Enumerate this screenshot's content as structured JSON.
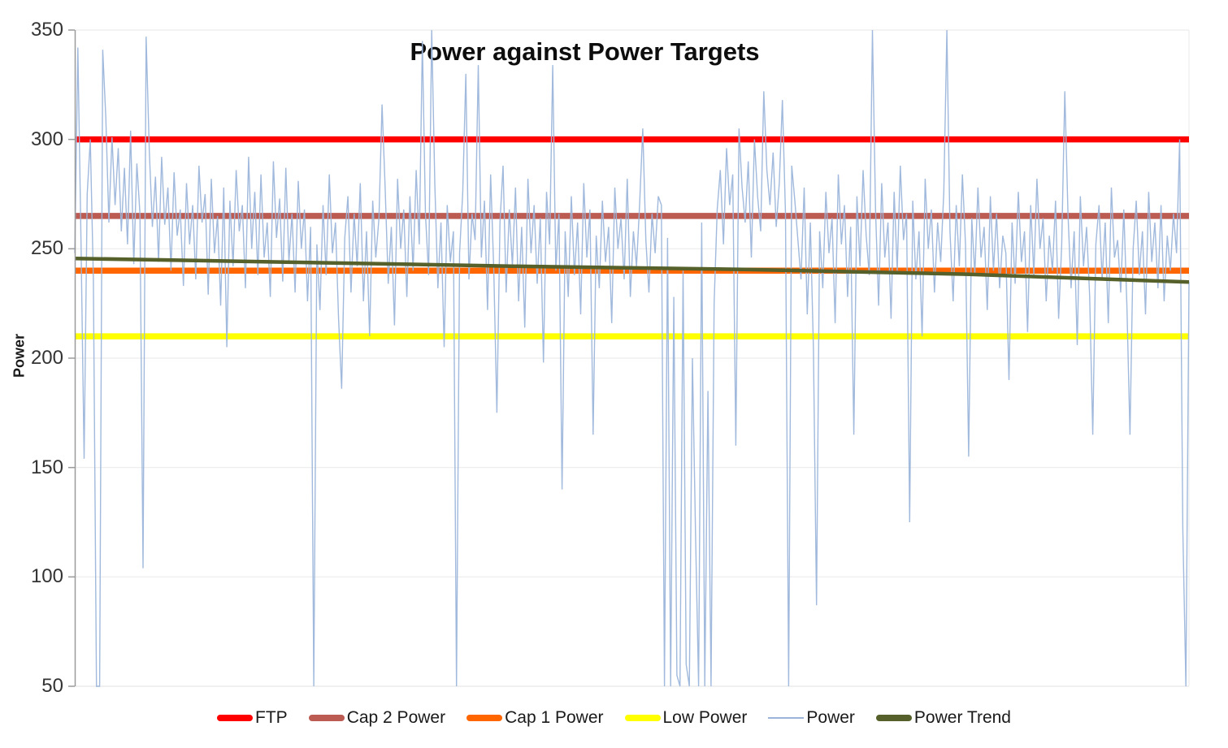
{
  "title": "Power against Power Targets",
  "y_axis": {
    "title": "Power",
    "ticks": [
      "350",
      "300",
      "250",
      "200",
      "150",
      "100",
      "50"
    ]
  },
  "legend": {
    "items": [
      {
        "label": "FTP",
        "color": "#FF0000",
        "style": "thick"
      },
      {
        "label": "Cap 2 Power",
        "color": "#BB5B52",
        "style": "thick"
      },
      {
        "label": "Cap 1 Power",
        "color": "#FF6600",
        "style": "thick"
      },
      {
        "label": "Low Power",
        "color": "#FFFF00",
        "style": "thick"
      },
      {
        "label": "Power",
        "color": "#9BB5DA",
        "style": "thin"
      },
      {
        "label": "Power Trend",
        "color": "#55602A",
        "style": "thick"
      }
    ]
  },
  "chart_data": {
    "type": "line",
    "title": "Power against Power Targets",
    "xlabel": "",
    "ylabel": "Power",
    "ylim": [
      50,
      350
    ],
    "ytick_step": 50,
    "x_axis_labels_visible": false,
    "grid": "horizontal-light",
    "legend_position": "bottom",
    "target_lines": [
      {
        "name": "FTP",
        "value": 300,
        "color": "#FF0000"
      },
      {
        "name": "Cap 2 Power",
        "value": 265,
        "color": "#BB5B52"
      },
      {
        "name": "Cap 1 Power",
        "value": 240,
        "color": "#FF6600"
      },
      {
        "name": "Low Power",
        "value": 210,
        "color": "#FFFF00"
      }
    ],
    "trend": {
      "name": "Power Trend",
      "color": "#55602A",
      "points_x_fraction_value": [
        [
          0,
          245.6
        ],
        [
          0.2,
          243.8
        ],
        [
          0.4,
          242.0
        ],
        [
          0.6,
          240.6
        ],
        [
          0.8,
          238.4
        ],
        [
          1.0,
          234.8
        ]
      ]
    },
    "power_series": {
      "name": "Power",
      "color": "#9BB5DA",
      "values": [
        248,
        342,
        255,
        154,
        275,
        300,
        236,
        50,
        50,
        341,
        310,
        262,
        301,
        270,
        296,
        258,
        287,
        252,
        304,
        243,
        289,
        266,
        104,
        347,
        295,
        260,
        283,
        244,
        292,
        261,
        278,
        240,
        285,
        256,
        268,
        233,
        280,
        252,
        270,
        236,
        288,
        262,
        275,
        229,
        282,
        248,
        265,
        224,
        278,
        205,
        272,
        242,
        286,
        258,
        270,
        232,
        292,
        250,
        276,
        238,
        284,
        246,
        262,
        228,
        290,
        255,
        273,
        235,
        287,
        244,
        266,
        230,
        281,
        250,
        268,
        226,
        260,
        50,
        252,
        222,
        270,
        238,
        284,
        248,
        262,
        218,
        186,
        255,
        274,
        230,
        266,
        242,
        280,
        226,
        258,
        210,
        272,
        246,
        264,
        316,
        278,
        234,
        260,
        215,
        282,
        250,
        268,
        228,
        274,
        240,
        286,
        252,
        345,
        266,
        238,
        350,
        280,
        232,
        262,
        205,
        270,
        244,
        258,
        50,
        248,
        276,
        330,
        236,
        266,
        254,
        334,
        246,
        272,
        222,
        284,
        240,
        175,
        262,
        288,
        230,
        268,
        242,
        278,
        226,
        260,
        214,
        282,
        248,
        270,
        234,
        264,
        198,
        276,
        252,
        334,
        240,
        266,
        140,
        258,
        228,
        274,
        238,
        262,
        220,
        280,
        246,
        268,
        165,
        256,
        232,
        272,
        244,
        260,
        216,
        278,
        250,
        264,
        236,
        282,
        228,
        258,
        242,
        270,
        305,
        254,
        230,
        266,
        248,
        274,
        270,
        50,
        255,
        50,
        228,
        55,
        50,
        240,
        60,
        50,
        200,
        120,
        50,
        262,
        50,
        185,
        50,
        225,
        268,
        286,
        252,
        296,
        270,
        284,
        160,
        305,
        278,
        262,
        290,
        246,
        300,
        274,
        258,
        322,
        286,
        270,
        294,
        260,
        280,
        318,
        266,
        50,
        288,
        272,
        254,
        236,
        278,
        220,
        262,
        204,
        87,
        258,
        232,
        276,
        248,
        264,
        216,
        284,
        252,
        270,
        228,
        260,
        165,
        274,
        242,
        286,
        256,
        238,
        350,
        268,
        224,
        280,
        246,
        262,
        218,
        276,
        240,
        288,
        254,
        266,
        125,
        272,
        236,
        258,
        210,
        282,
        250,
        268,
        230,
        262,
        244,
        276,
        350,
        258,
        226,
        270,
        242,
        284,
        252,
        155,
        264,
        238,
        278,
        246,
        260,
        222,
        274,
        240,
        266,
        232,
        256,
        248,
        190,
        262,
        234,
        276,
        244,
        258,
        212,
        270,
        238,
        282,
        250,
        264,
        226,
        256,
        240,
        272,
        218,
        252,
        322,
        266,
        232,
        258,
        206,
        274,
        242,
        260,
        228,
        165,
        252,
        270,
        236,
        262,
        216,
        278,
        246,
        254,
        230,
        268,
        224,
        165,
        250,
        272,
        238,
        258,
        220,
        276,
        244,
        262,
        232,
        270,
        226,
        256,
        240,
        266,
        248,
        300,
        122,
        50,
        235
      ]
    }
  }
}
